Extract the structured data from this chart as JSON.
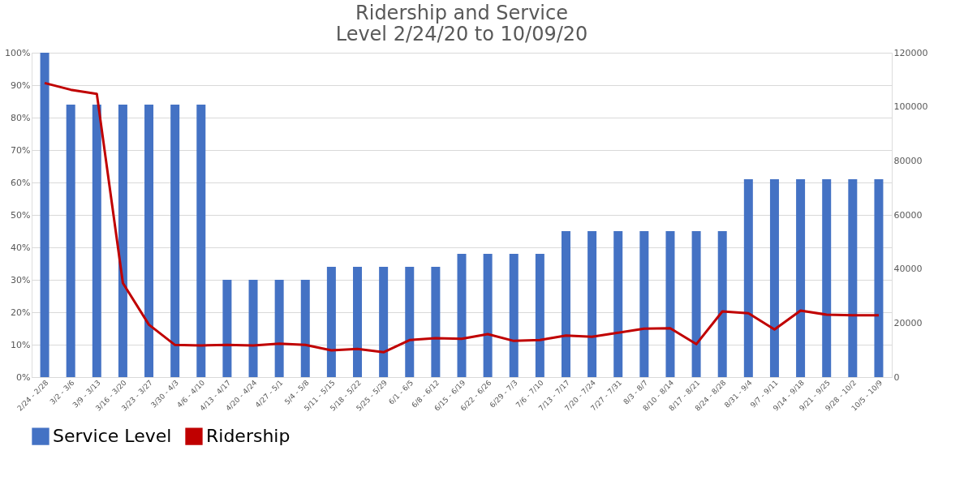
{
  "chart_data": {
    "type": "bar",
    "title": [
      "Ridership and Service",
      "Level 2/24/20 to 10/09/20"
    ],
    "categories": [
      "2/24 - 2/28",
      "3/2 - 3/6",
      "3/9 - 3/13",
      "3/16 - 3/20",
      "3/23 - 3/27",
      "3/30 - 4/3",
      "4/6 - 4/10",
      "4/13 - 4/17",
      "4/20 - 4/24",
      "4/27 - 5/1",
      "5/4 - 5/8",
      "5/11 - 5/15",
      "5/18 - 5/22",
      "5/25 - 5/29",
      "6/1 - 6/5",
      "6/8 - 6/12",
      "6/15 - 6/19",
      "6/22 - 6/26",
      "6/29 - 7/3",
      "7/6 - 7/10",
      "7/13 - 7/17",
      "7/20 - 7/24",
      "7/27 - 7/31",
      "8/3 - 8/7",
      "8/10 - 8/14",
      "8/17 - 8/21",
      "8/24 - 8/28",
      "8/31 - 9/4",
      "9/7 - 9/11",
      "9/14 - 9/18",
      "9/21 - 9/25",
      "9/28 - 10/2",
      "10/5 - 10/9"
    ],
    "series": [
      {
        "name": "Service Level",
        "color": "#4472c4",
        "values": [
          100,
          84,
          84,
          84,
          84,
          84,
          84,
          30,
          30,
          30,
          30,
          34,
          34,
          34,
          34,
          34,
          38,
          38,
          38,
          38,
          45,
          45,
          45,
          45,
          45,
          45,
          45,
          61,
          61,
          61,
          61,
          61,
          61
        ]
      },
      {
        "name": "Ridership",
        "type": "line",
        "axis": "y2",
        "color": "#c00000",
        "values": [
          108800,
          106300,
          104800,
          34800,
          19400,
          11900,
          11700,
          11900,
          11700,
          12400,
          11900,
          9900,
          10400,
          9200,
          13700,
          14400,
          14200,
          15900,
          13400,
          13700,
          15400,
          14900,
          16400,
          17900,
          18100,
          12200,
          24300,
          23600,
          17600,
          24600,
          23100,
          22900,
          22900
        ]
      }
    ],
    "ylim": [
      0,
      100
    ],
    "yticks": [
      {
        "value": 0,
        "label": "0%"
      },
      {
        "value": 10,
        "label": "10%"
      },
      {
        "value": 20,
        "label": "20%"
      },
      {
        "value": 30,
        "label": "30%"
      },
      {
        "value": 40,
        "label": "40%"
      },
      {
        "value": 50,
        "label": "50%"
      },
      {
        "value": 60,
        "label": "60%"
      },
      {
        "value": 70,
        "label": "70%"
      },
      {
        "value": 80,
        "label": "80%"
      },
      {
        "value": 90,
        "label": "90%"
      },
      {
        "value": 100,
        "label": "100%"
      }
    ],
    "y2lim": [
      0,
      120000
    ],
    "y2ticks": [
      0,
      20000,
      40000,
      60000,
      80000,
      100000,
      120000
    ],
    "grid": "y",
    "legend": "bottom"
  }
}
